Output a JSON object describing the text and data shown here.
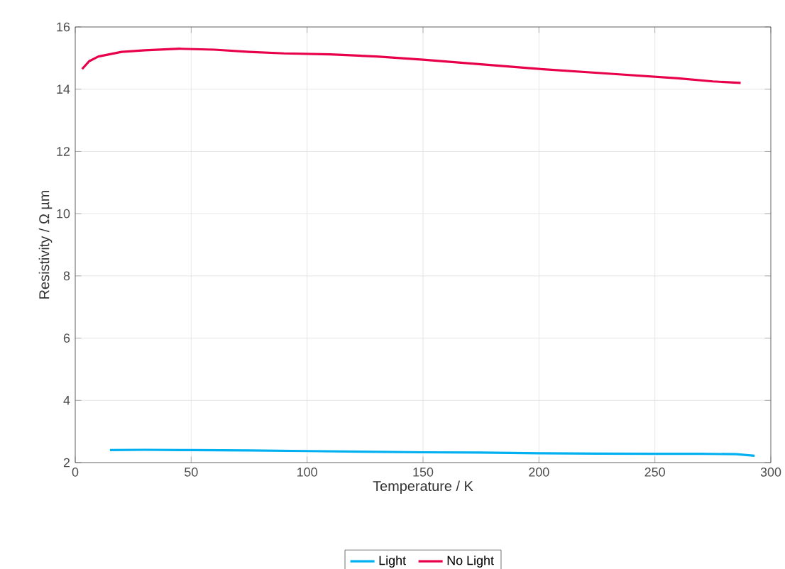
{
  "chart_data": {
    "type": "line",
    "xlabel": "Temperature / K",
    "ylabel": "Resistivity / Ω µm",
    "xlim": [
      0,
      300
    ],
    "ylim": [
      2,
      16
    ],
    "xticks": [
      0,
      50,
      100,
      150,
      200,
      250,
      300
    ],
    "yticks": [
      2,
      4,
      6,
      8,
      10,
      12,
      14,
      16
    ],
    "grid": true,
    "legend": "bottom",
    "line_style": "solid",
    "marker": "none",
    "series": [
      {
        "name": "Light",
        "color": "#00b0f0",
        "x": [
          15,
          30,
          50,
          75,
          100,
          125,
          150,
          175,
          200,
          225,
          250,
          270,
          285,
          293
        ],
        "values": [
          2.4,
          2.41,
          2.4,
          2.39,
          2.37,
          2.35,
          2.33,
          2.32,
          2.3,
          2.29,
          2.28,
          2.28,
          2.27,
          2.22
        ]
      },
      {
        "name": "No Light",
        "color": "#e8004b",
        "x": [
          3,
          6,
          10,
          20,
          30,
          45,
          60,
          75,
          90,
          110,
          130,
          150,
          175,
          200,
          230,
          260,
          275,
          287
        ],
        "values": [
          14.65,
          14.9,
          15.05,
          15.2,
          15.25,
          15.3,
          15.27,
          15.2,
          15.15,
          15.12,
          15.05,
          14.95,
          14.8,
          14.65,
          14.5,
          14.35,
          14.25,
          14.2
        ]
      }
    ]
  }
}
